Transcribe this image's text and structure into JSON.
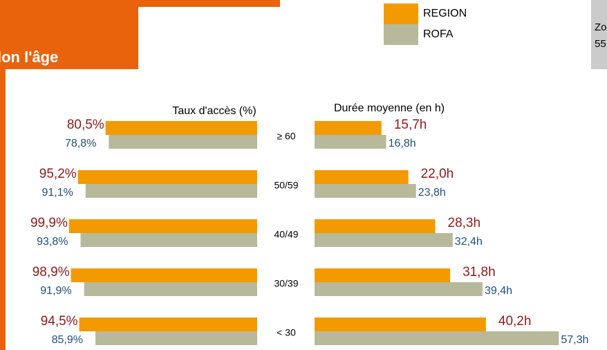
{
  "header": {
    "title": "lon l'âge"
  },
  "side_note": [
    "Zo",
    "55"
  ],
  "chart_data": [
    {
      "type": "bar",
      "orientation": "horizontal",
      "direction": "leftward",
      "title": "Taux d'accès (%)",
      "categories": [
        "≥ 60",
        "50/59",
        "40/49",
        "30/39",
        "< 30"
      ],
      "xlim": [
        0,
        100
      ],
      "series": [
        {
          "name": "REGION",
          "color": "#f39a00",
          "label_color": "#8b1a1a",
          "values": [
            80.5,
            95.2,
            99.9,
            98.9,
            94.5
          ],
          "value_labels": [
            "80,5%",
            "95,2%",
            "99,9%",
            "98,9%",
            "94,5%"
          ]
        },
        {
          "name": "ROFA",
          "color": "#b7b99a",
          "label_color": "#1f4e79",
          "values": [
            78.8,
            91.1,
            93.8,
            91.9,
            85.9
          ],
          "value_labels": [
            "78,8%",
            "91,1%",
            "93,8%",
            "91,9%",
            "85,9%"
          ]
        }
      ]
    },
    {
      "type": "bar",
      "orientation": "horizontal",
      "direction": "rightward",
      "title": "Durée moyenne (en h)",
      "xlim": [
        0,
        60
      ],
      "series": [
        {
          "color": "#f39a00",
          "label_color": "#8b1a1a",
          "values": [
            15.7,
            22.0,
            28.3,
            31.8,
            40.2
          ],
          "value_labels": [
            "15,7h",
            "22,0h",
            "28,3h",
            "31,8h",
            "40,2h"
          ]
        },
        {
          "color": "#b7b99a",
          "label_color": "#1f4e79",
          "values": [
            16.8,
            23.8,
            32.4,
            39.4,
            57.3
          ],
          "value_labels": [
            "16,8h",
            "23,8h",
            "32,4h",
            "39,4h",
            "57,3h"
          ]
        }
      ]
    }
  ]
}
